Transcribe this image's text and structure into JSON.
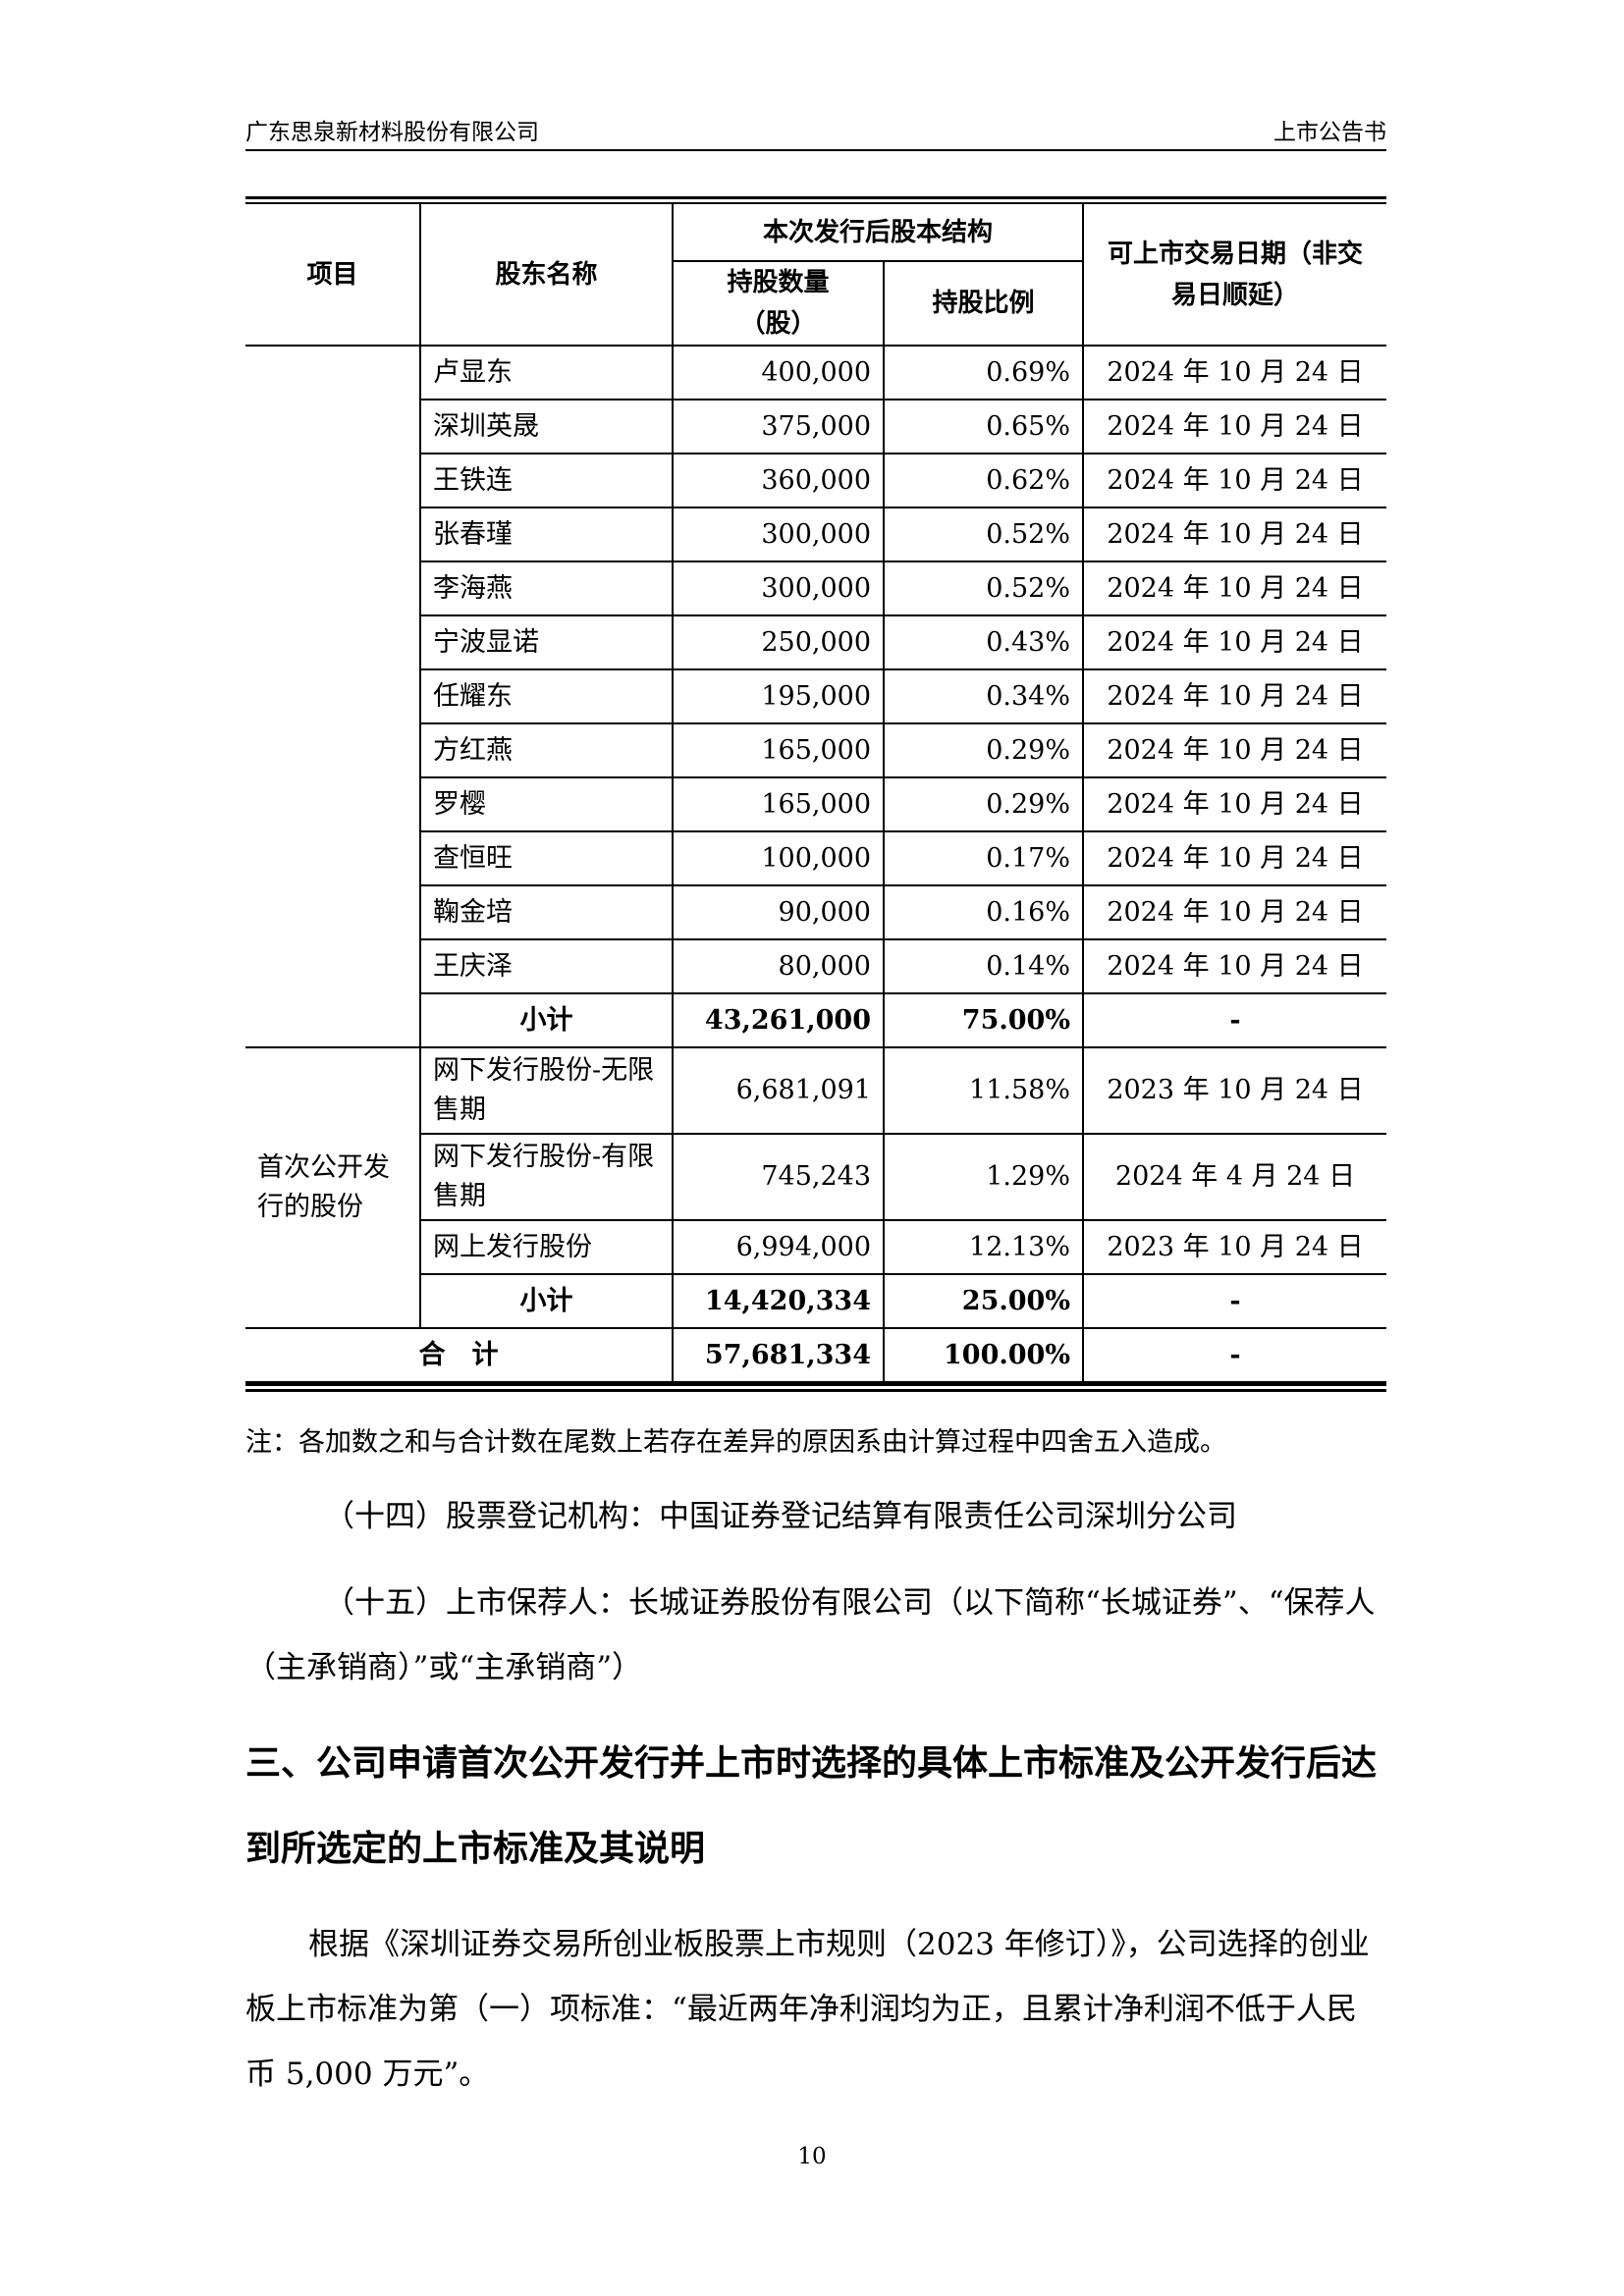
{
  "header": {
    "company": "广东思泉新材料股份有限公司",
    "doc": "上市公告书"
  },
  "table": {
    "headers": {
      "item": "项目",
      "name": "股东名称",
      "structure": "本次发行后股本结构",
      "qty": "持股数量（股）",
      "ratio": "持股比例",
      "date": "可上市交易日期（非交易日顺延）"
    },
    "rows1": [
      {
        "name": "卢显东",
        "qty": "400,000",
        "ratio": "0.69%",
        "date": "2024 年 10 月 24 日"
      },
      {
        "name": "深圳英晟",
        "qty": "375,000",
        "ratio": "0.65%",
        "date": "2024 年 10 月 24 日"
      },
      {
        "name": "王铁连",
        "qty": "360,000",
        "ratio": "0.62%",
        "date": "2024 年 10 月 24 日"
      },
      {
        "name": "张春瑾",
        "qty": "300,000",
        "ratio": "0.52%",
        "date": "2024 年 10 月 24 日"
      },
      {
        "name": "李海燕",
        "qty": "300,000",
        "ratio": "0.52%",
        "date": "2024 年 10 月 24 日"
      },
      {
        "name": "宁波显诺",
        "qty": "250,000",
        "ratio": "0.43%",
        "date": "2024 年 10 月 24 日"
      },
      {
        "name": "任耀东",
        "qty": "195,000",
        "ratio": "0.34%",
        "date": "2024 年 10 月 24 日"
      },
      {
        "name": "方红燕",
        "qty": "165,000",
        "ratio": "0.29%",
        "date": "2024 年 10 月 24 日"
      },
      {
        "name": "罗樱",
        "qty": "165,000",
        "ratio": "0.29%",
        "date": "2024 年 10 月 24 日"
      },
      {
        "name": "查恒旺",
        "qty": "100,000",
        "ratio": "0.17%",
        "date": "2024 年 10 月 24 日"
      },
      {
        "name": "鞠金培",
        "qty": "90,000",
        "ratio": "0.16%",
        "date": "2024 年 10 月 24 日"
      },
      {
        "name": "王庆泽",
        "qty": "80,000",
        "ratio": "0.14%",
        "date": "2024 年 10 月 24 日"
      }
    ],
    "subtotal1": {
      "name": "小计",
      "qty": "43,261,000",
      "ratio": "75.00%",
      "date": "-"
    },
    "group2": "首次公开发行的股份",
    "rows2": [
      {
        "name": "网下发行股份-无限售期",
        "qty": "6,681,091",
        "ratio": "11.58%",
        "date": "2023 年 10 月 24 日"
      },
      {
        "name": "网下发行股份-有限售期",
        "qty": "745,243",
        "ratio": "1.29%",
        "date": "2024 年 4 月 24 日"
      },
      {
        "name": "网上发行股份",
        "qty": "6,994,000",
        "ratio": "12.13%",
        "date": "2023 年 10 月 24 日"
      }
    ],
    "subtotal2": {
      "name": "小计",
      "qty": "14,420,334",
      "ratio": "25.00%",
      "date": "-"
    },
    "total": {
      "name": "合　计",
      "qty": "57,681,334",
      "ratio": "100.00%",
      "date": "-"
    }
  },
  "note": "注：各加数之和与合计数在尾数上若存在差异的原因系由计算过程中四舍五入造成。",
  "para14": "（十四）股票登记机构：中国证券登记结算有限责任公司深圳分公司",
  "para15": "（十五）上市保荐人：长城证券股份有限公司（以下简称“长城证券”、“保荐人（主承销商）”或“主承销商”）",
  "heading3": "三、公司申请首次公开发行并上市时选择的具体上市标准及公开发行后达到所选定的上市标准及其说明",
  "para_std": "根据《深圳证券交易所创业板股票上市规则（2023 年修订）》，公司选择的创业板上市标准为第（一）项标准：“最近两年净利润均为正，且累计净利润不低于人民币 5,000 万元”。",
  "page_number": "10"
}
